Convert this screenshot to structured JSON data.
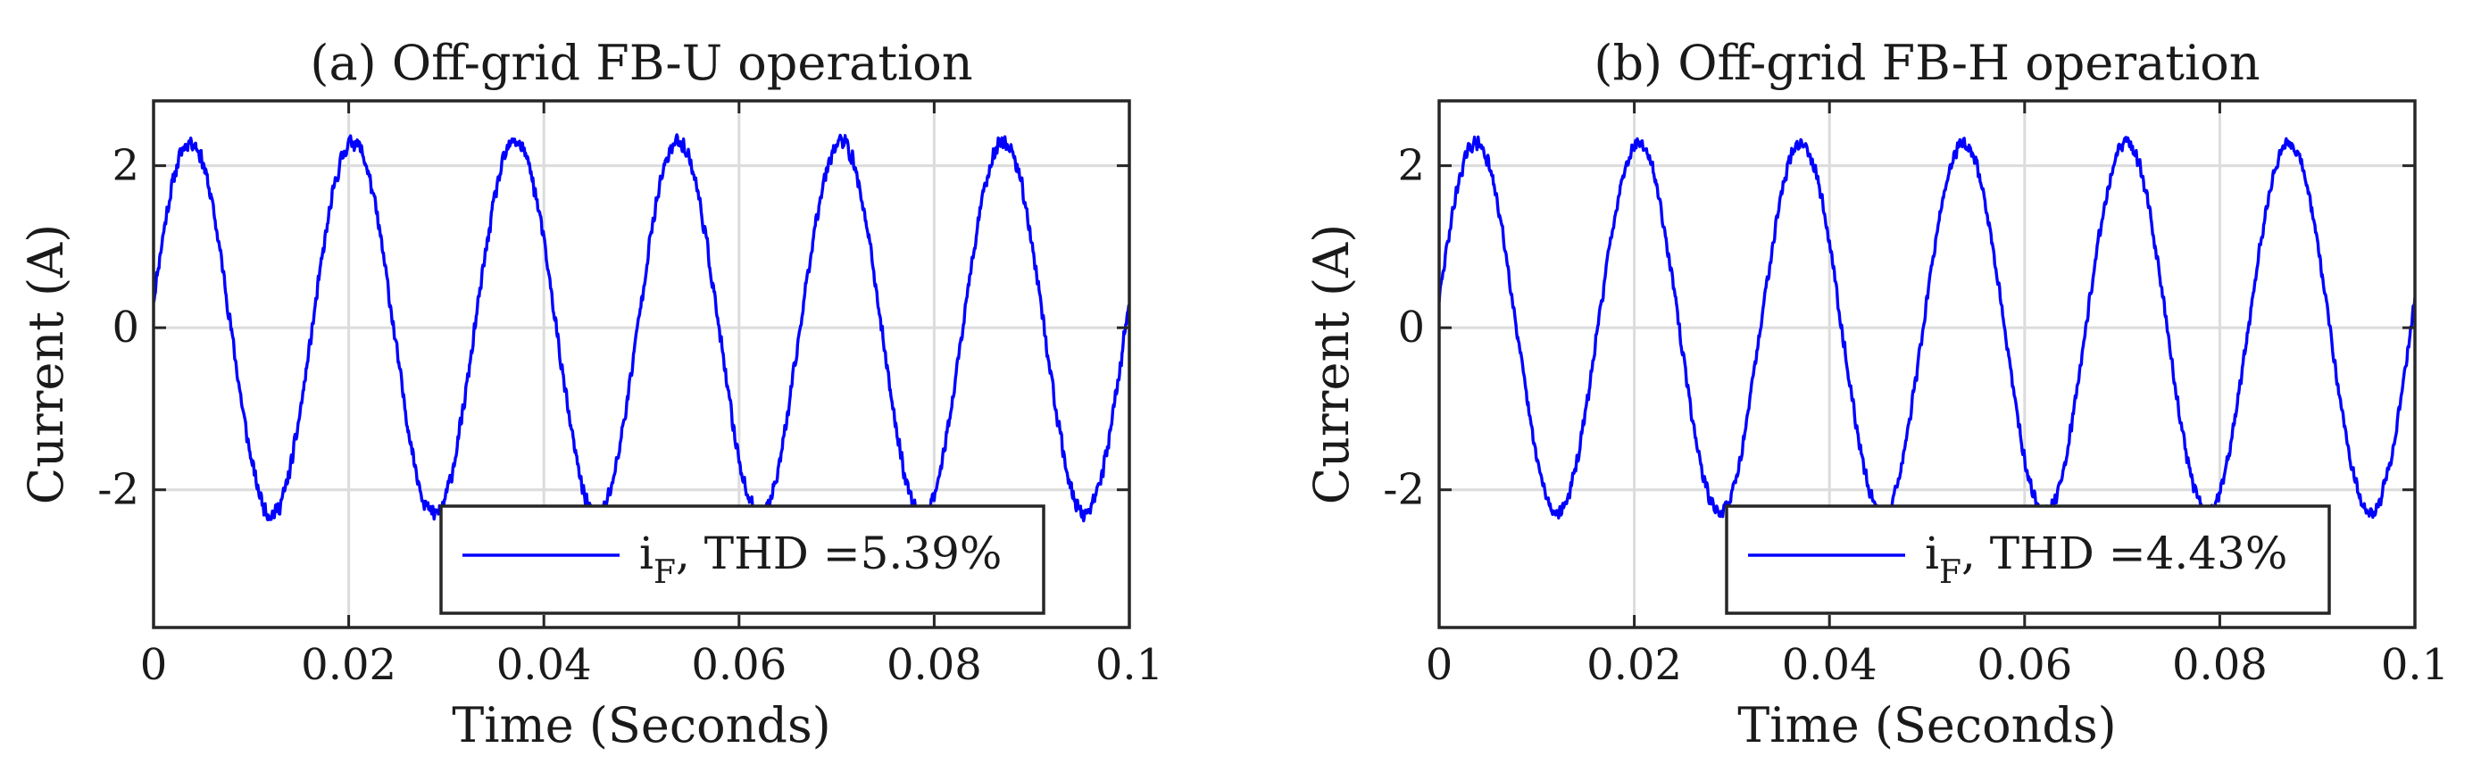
{
  "chart_data": [
    {
      "type": "line",
      "title": "(a) Off-grid FB-U operation",
      "xlabel": "Time (Seconds)",
      "ylabel": "Current (A)",
      "xlim": [
        0,
        0.1
      ],
      "ylim": [
        -3.7,
        2.8
      ],
      "xticks": [
        0,
        0.02,
        0.04,
        0.06,
        0.08,
        0.1
      ],
      "xtick_labels": [
        "0",
        "0.02",
        "0.04",
        "0.06",
        "0.08",
        "0.1"
      ],
      "yticks": [
        -2,
        0,
        2
      ],
      "ytick_labels": [
        "-2",
        "0",
        "2"
      ],
      "grid": true,
      "legend_position": "bottom-right",
      "series": [
        {
          "name": "i_F",
          "legend_main": "i",
          "legend_sub": "F",
          "legend_rest": ", THD =5.39%",
          "color": "#0000ff",
          "amplitude": 2.3,
          "frequency_hz": 60,
          "phase_shift_s": 0.0004,
          "noise": 0.12,
          "seed": 11
        }
      ]
    },
    {
      "type": "line",
      "title": "(b) Off-grid FB-H operation",
      "xlabel": "Time (Seconds)",
      "ylabel": "Current (A)",
      "xlim": [
        0,
        0.1
      ],
      "ylim": [
        -3.7,
        2.8
      ],
      "xticks": [
        0,
        0.02,
        0.04,
        0.06,
        0.08,
        0.1
      ],
      "xtick_labels": [
        "0",
        "0.02",
        "0.04",
        "0.06",
        "0.08",
        "0.1"
      ],
      "yticks": [
        -2,
        0,
        2
      ],
      "ytick_labels": [
        "-2",
        "0",
        "2"
      ],
      "grid": true,
      "legend_position": "bottom-right",
      "series": [
        {
          "name": "i_F",
          "legend_main": "i",
          "legend_sub": "F",
          "legend_rest": ", THD =4.43%",
          "color": "#0000ff",
          "amplitude": 2.28,
          "frequency_hz": 60,
          "phase_shift_s": 0.0004,
          "noise": 0.1,
          "seed": 29
        }
      ]
    }
  ]
}
